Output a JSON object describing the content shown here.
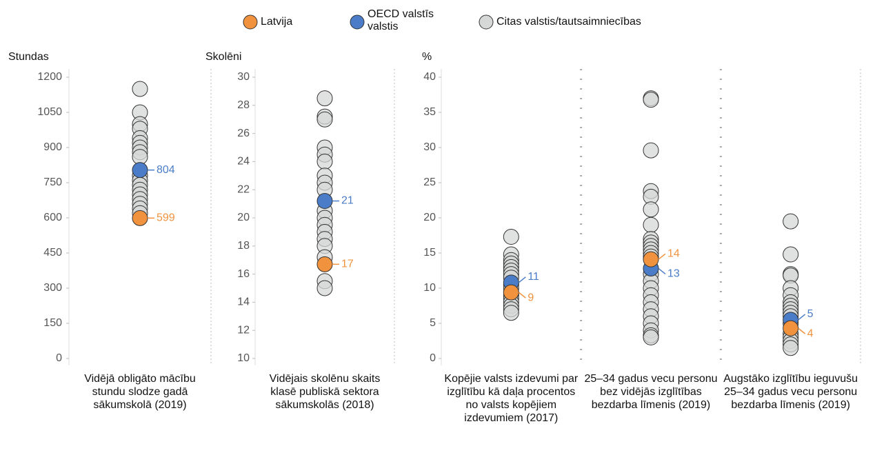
{
  "legend": [
    {
      "name": "Citas valstis/tautsaimniecības",
      "color": "#d5d8d7"
    },
    {
      "name": "Latvija",
      "color": "#f0923e"
    },
    {
      "name": "OECD valstīs valstis",
      "color": "#4a7cc7"
    }
  ],
  "chart_data": [
    {
      "type": "strip",
      "y_label": "Stundas",
      "ylim": [
        0,
        1200
      ],
      "yticks": [
        0,
        150,
        300,
        450,
        600,
        750,
        900,
        1050,
        1200
      ],
      "categories": [
        "Vidējā obligāto mācību stundu slodze gadā sākumskolā (2019)"
      ],
      "series": [
        {
          "values": [
            [
              1150,
              1050,
              1000,
              980,
              940,
              920,
              900,
              880,
              860,
              780,
              760,
              740,
              720,
              700,
              680,
              660,
              640,
              620
            ]
          ]
        },
        {
          "values": [
            599
          ]
        },
        {
          "values": [
            804
          ]
        }
      ]
    },
    {
      "type": "strip",
      "y_label": "Skolēni",
      "ylim": [
        10,
        30
      ],
      "yticks": [
        10,
        12,
        14,
        16,
        18,
        20,
        22,
        24,
        26,
        28,
        30
      ],
      "categories": [
        "Vidējais skolēnu skaits klasē publiskā sektora sākumskolās (2018)"
      ],
      "series": [
        {
          "values": [
            [
              28.5,
              27.2,
              27,
              25,
              24.5,
              24,
              23,
              22.5,
              22,
              20.5,
              20,
              19.5,
              19,
              18.5,
              18,
              17.2,
              15.5,
              15
            ]
          ]
        },
        {
          "values": [
            16.7
          ],
          "value_labels": [
            "17"
          ]
        },
        {
          "values": [
            21.2
          ],
          "value_labels": [
            "21"
          ]
        }
      ]
    },
    {
      "type": "strip",
      "y_label": "%",
      "ylim": [
        0,
        40
      ],
      "yticks": [
        0,
        5,
        10,
        15,
        20,
        25,
        30,
        35,
        40
      ],
      "categories": [
        "Kopējie valsts izdevumi par izglītību kā daļa procentos no valsts kopējiem izdevumiem (2017)",
        "25–34 gadus vecu personu bez vidējās izglītības bezdarba līmenis (2019)",
        "Augstāko izglītību ieguvušu 25–34 gadus vecu personu bezdarba līmenis (2019)"
      ],
      "series": [
        {
          "values": [
            [
              17.3,
              14.8,
              14,
              13.5,
              13,
              12.5,
              12,
              11.5,
              10.5,
              10,
              9,
              8.5,
              8,
              7.5,
              7,
              6.5
            ],
            [
              37,
              36.8,
              29.6,
              23.8,
              23,
              21.2,
              19,
              17,
              16.5,
              16,
              15.5,
              15,
              14.5,
              12,
              11,
              10,
              9,
              8,
              7,
              6,
              5,
              4,
              3.3,
              3
            ],
            [
              19.5,
              14.8,
              12,
              11.8,
              10,
              9,
              8,
              7.5,
              7,
              6.5,
              6,
              5,
              3.5,
              3,
              2.5,
              2,
              1.5
            ]
          ]
        },
        {
          "values": [
            9.4,
            14.1,
            4.3
          ],
          "value_labels": [
            "9",
            "14",
            "4"
          ]
        },
        {
          "values": [
            10.8,
            12.8,
            5.5
          ],
          "value_labels": [
            "11",
            "13",
            "5"
          ]
        }
      ]
    }
  ]
}
